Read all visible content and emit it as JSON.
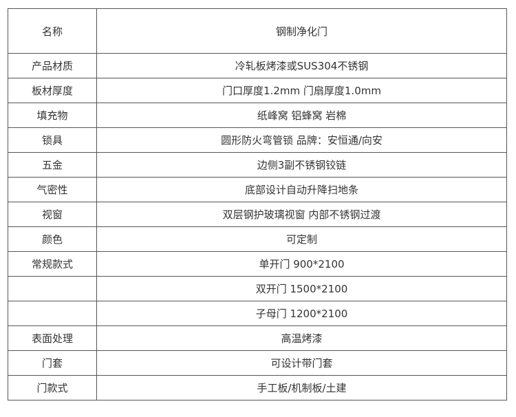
{
  "table": {
    "header": {
      "label": "名称",
      "value": "钢制净化门"
    },
    "rows": [
      {
        "label": "产品材质",
        "value": "冷轧板烤漆或SUS304不锈钢"
      },
      {
        "label": "板材厚度",
        "value": "门口厚度1.2mm 门扇厚度1.0mm"
      },
      {
        "label": "填充物",
        "value": "纸峰窝 铝蜂窝 岩棉"
      },
      {
        "label": "锁具",
        "value": "圆形防火弯管锁 品牌：安恒通/向安"
      },
      {
        "label": "五金",
        "value": "边侧3副不锈钢铰链"
      },
      {
        "label": "气密性",
        "value": "底部设计自动升降扫地条"
      },
      {
        "label": "视窗",
        "value": "双层钢护玻璃视窗 内部不锈钢过渡"
      },
      {
        "label": "颜色",
        "value": "可定制"
      },
      {
        "label": "常规款式",
        "value": "单开门 900*2100"
      },
      {
        "value": "双开门 1500*2100"
      },
      {
        "value": "子母门 1200*2100"
      },
      {
        "label": "表面处理",
        "value": "高温烤漆"
      },
      {
        "label": "门套",
        "value": "可设计带门套"
      },
      {
        "label": "门款式",
        "value": "手工板/机制板/土建"
      }
    ]
  }
}
